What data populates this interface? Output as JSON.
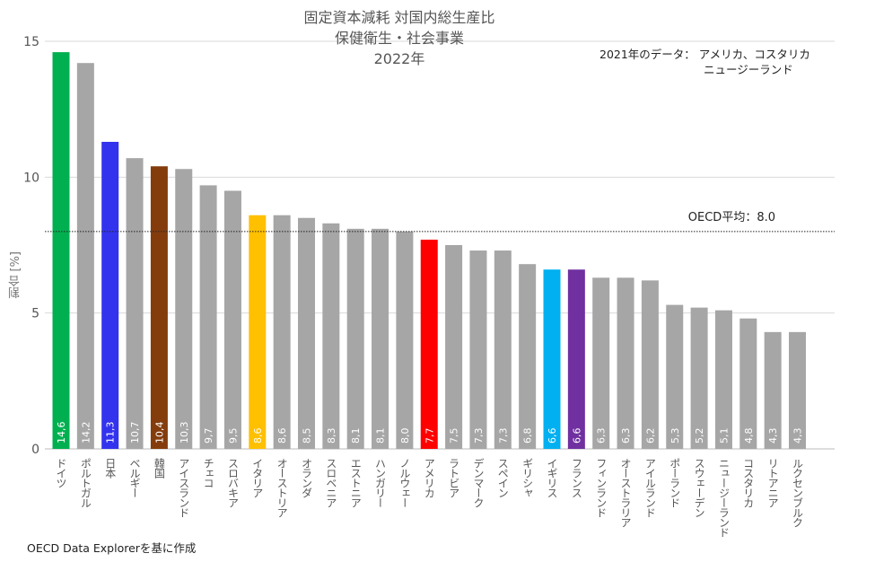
{
  "chart_data": {
    "type": "bar",
    "title": [
      "固定資本減耗 対国内総生産比",
      "保健衛生・社会事業",
      "2022年"
    ],
    "note": [
      "2021年のデータ： アメリカ、コスタリカ",
      "ニュージーランド"
    ],
    "source": "OECD Data Explorerを基に作成",
    "ylabel": "割合 [%]",
    "ylim": [
      0,
      15
    ],
    "yticks": [
      0,
      5,
      10,
      15
    ],
    "grid": true,
    "reference_line": {
      "label": "OECD平均：8.0",
      "value": 8.0
    },
    "categories": [
      "ドイツ",
      "ポルトガル",
      "日本",
      "ベルギー",
      "韓国",
      "アイスランド",
      "チェコ",
      "スロバキア",
      "イタリア",
      "オーストリア",
      "オランダ",
      "スロベニア",
      "エストニア",
      "ハンガリー",
      "ノルウェー",
      "アメリカ",
      "ラトビア",
      "デンマーク",
      "スペイン",
      "ギリシャ",
      "イギリス",
      "フランス",
      "フィンランド",
      "オーストラリア",
      "アイルランド",
      "ポーランド",
      "スウェーデン",
      "ニュージーランド",
      "コスタリカ",
      "リトアニア",
      "ルクセンブルク"
    ],
    "values": [
      14.6,
      14.2,
      11.3,
      10.7,
      10.4,
      10.3,
      9.7,
      9.5,
      8.6,
      8.6,
      8.5,
      8.3,
      8.1,
      8.1,
      8.0,
      7.7,
      7.5,
      7.3,
      7.3,
      6.8,
      6.6,
      6.6,
      6.3,
      6.3,
      6.2,
      5.3,
      5.2,
      5.1,
      4.8,
      4.3,
      4.3
    ],
    "value_labels": [
      "14,6",
      "14,2",
      "11,3",
      "10,7",
      "10,4",
      "10,3",
      "9,7",
      "9,5",
      "8,6",
      "8,6",
      "8,5",
      "8,3",
      "8,1",
      "8,1",
      "8,0",
      "7,7",
      "7,5",
      "7,3",
      "7,3",
      "6,8",
      "6,6",
      "6,6",
      "6,3",
      "6,3",
      "6,2",
      "5,3",
      "5,2",
      "5,1",
      "4,8",
      "4,3",
      "4,3"
    ],
    "colors": {
      "default": "#a6a6a6",
      "ドイツ": "#00b050",
      "日本": "#3333ee",
      "韓国": "#843c0c",
      "イタリア": "#ffc000",
      "アメリカ": "#ff0000",
      "イギリス": "#00b0f0",
      "フランス": "#7030a0"
    }
  }
}
